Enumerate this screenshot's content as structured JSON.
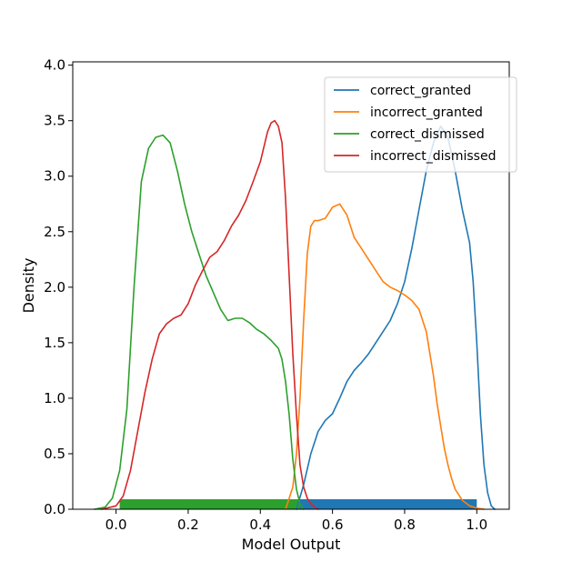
{
  "chart_data": {
    "type": "line",
    "title": "",
    "xlabel": "Model Output",
    "ylabel": "Density",
    "xlim": [
      -0.12,
      1.09
    ],
    "ylim": [
      0.0,
      4.03
    ],
    "xticks": [
      0.0,
      0.2,
      0.4,
      0.6,
      0.8,
      1.0
    ],
    "xtick_labels": [
      "0.0",
      "0.2",
      "0.4",
      "0.6",
      "0.8",
      "1.0"
    ],
    "yticks": [
      0.0,
      0.5,
      1.0,
      1.5,
      2.0,
      2.5,
      3.0,
      3.5,
      4.0
    ],
    "ytick_labels": [
      "0.0",
      "0.5",
      "1.0",
      "1.5",
      "2.0",
      "2.5",
      "3.0",
      "3.5",
      "4.0"
    ],
    "grid": false,
    "legend_position": "top-right",
    "series": [
      {
        "name": "correct_granted",
        "color": "#1f77b4",
        "x": [
          0.5,
          0.52,
          0.54,
          0.56,
          0.58,
          0.6,
          0.62,
          0.64,
          0.66,
          0.68,
          0.7,
          0.72,
          0.74,
          0.76,
          0.78,
          0.8,
          0.82,
          0.84,
          0.86,
          0.88,
          0.9,
          0.92,
          0.94,
          0.96,
          0.98,
          0.99,
          1.0,
          1.01,
          1.02,
          1.03,
          1.04,
          1.05
        ],
        "y": [
          0.0,
          0.22,
          0.5,
          0.7,
          0.8,
          0.86,
          1.0,
          1.15,
          1.25,
          1.32,
          1.4,
          1.5,
          1.6,
          1.7,
          1.85,
          2.05,
          2.35,
          2.7,
          3.05,
          3.3,
          3.45,
          3.35,
          3.05,
          2.7,
          2.4,
          2.05,
          1.5,
          0.85,
          0.4,
          0.15,
          0.03,
          0.0
        ]
      },
      {
        "name": "incorrect_granted",
        "color": "#ff7f0e",
        "x": [
          0.47,
          0.49,
          0.5,
          0.51,
          0.52,
          0.53,
          0.54,
          0.55,
          0.56,
          0.58,
          0.6,
          0.62,
          0.64,
          0.66,
          0.68,
          0.7,
          0.72,
          0.74,
          0.76,
          0.78,
          0.8,
          0.82,
          0.84,
          0.86,
          0.88,
          0.89,
          0.9,
          0.91,
          0.92,
          0.93,
          0.94,
          0.96,
          0.98,
          1.0,
          1.02
        ],
        "y": [
          0.0,
          0.2,
          0.5,
          1.0,
          1.7,
          2.3,
          2.55,
          2.6,
          2.6,
          2.62,
          2.72,
          2.75,
          2.65,
          2.45,
          2.35,
          2.25,
          2.15,
          2.05,
          2.0,
          1.97,
          1.93,
          1.88,
          1.8,
          1.6,
          1.2,
          0.95,
          0.75,
          0.55,
          0.4,
          0.28,
          0.18,
          0.08,
          0.03,
          0.01,
          0.0
        ]
      },
      {
        "name": "correct_dismissed",
        "color": "#2ca02c",
        "x": [
          -0.06,
          -0.03,
          -0.01,
          0.01,
          0.03,
          0.05,
          0.07,
          0.09,
          0.11,
          0.13,
          0.15,
          0.17,
          0.19,
          0.21,
          0.23,
          0.25,
          0.27,
          0.29,
          0.31,
          0.33,
          0.35,
          0.37,
          0.39,
          0.41,
          0.43,
          0.45,
          0.46,
          0.47,
          0.48,
          0.49,
          0.5,
          0.51,
          0.52
        ],
        "y": [
          0.0,
          0.02,
          0.1,
          0.35,
          0.9,
          2.0,
          2.95,
          3.25,
          3.35,
          3.37,
          3.3,
          3.05,
          2.75,
          2.5,
          2.3,
          2.1,
          1.95,
          1.8,
          1.7,
          1.72,
          1.72,
          1.68,
          1.62,
          1.58,
          1.52,
          1.45,
          1.35,
          1.15,
          0.85,
          0.45,
          0.18,
          0.05,
          0.0
        ]
      },
      {
        "name": "incorrect_dismissed",
        "color": "#d62728",
        "x": [
          -0.04,
          0.0,
          0.02,
          0.04,
          0.06,
          0.08,
          0.1,
          0.12,
          0.14,
          0.16,
          0.18,
          0.2,
          0.22,
          0.24,
          0.26,
          0.28,
          0.3,
          0.32,
          0.34,
          0.36,
          0.38,
          0.4,
          0.42,
          0.43,
          0.44,
          0.45,
          0.46,
          0.47,
          0.48,
          0.49,
          0.5,
          0.51,
          0.52,
          0.53,
          0.54,
          0.55,
          0.56
        ],
        "y": [
          0.0,
          0.03,
          0.12,
          0.35,
          0.7,
          1.05,
          1.35,
          1.58,
          1.67,
          1.72,
          1.75,
          1.85,
          2.02,
          2.15,
          2.27,
          2.32,
          2.42,
          2.55,
          2.65,
          2.78,
          2.95,
          3.13,
          3.4,
          3.48,
          3.5,
          3.45,
          3.3,
          2.8,
          2.1,
          1.4,
          0.85,
          0.4,
          0.2,
          0.1,
          0.05,
          0.02,
          0.0
        ]
      }
    ],
    "rugs": [
      {
        "color": "#1f77b4",
        "x_range": [
          0.5,
          1.0
        ],
        "height": 0.09
      },
      {
        "color": "#2ca02c",
        "x_range": [
          0.01,
          0.51
        ],
        "height": 0.09
      }
    ]
  }
}
